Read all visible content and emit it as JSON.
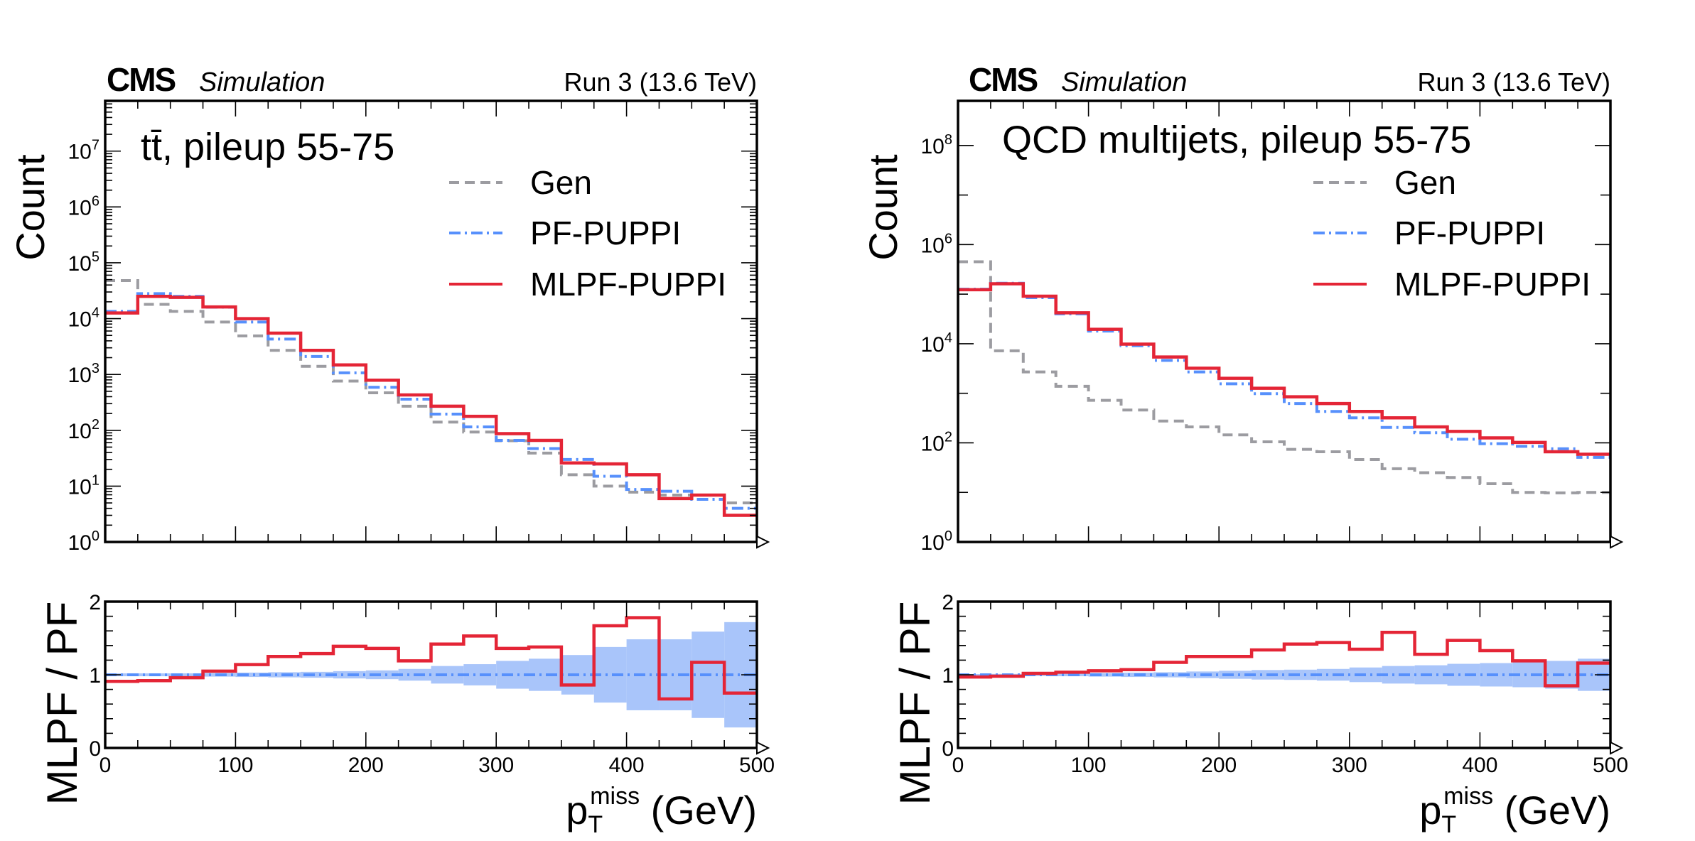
{
  "colors": {
    "gen": "#9c9ca1",
    "pf": "#5790fc",
    "mlpf": "#e42536",
    "band": "#a9c5fa"
  },
  "chart_data": [
    {
      "type": "line",
      "panel": "left",
      "experiment_label": "CMS",
      "experiment_sublabel": "Simulation",
      "run_label": "Run 3 (13.6 TeV)",
      "process_label": "tt̄, pileup 55-75",
      "xlabel": "p_T^miss (GeV)",
      "xlabel_main": "p",
      "xlabel_sub": "T",
      "xlabel_sup": "miss",
      "xlabel_unit": " (GeV)",
      "ylabel": "Count",
      "ratio_ylabel": "MLPF / PF",
      "yscale": "log",
      "ylim_log10": [
        0,
        7.9
      ],
      "yticks_log10": [
        0,
        1,
        2,
        3,
        4,
        5,
        6,
        7
      ],
      "xlim": [
        0,
        500
      ],
      "xticks": [
        0,
        100,
        200,
        300,
        400,
        500
      ],
      "ratio_ylim": [
        0,
        2
      ],
      "ratio_yticks": [
        0,
        1,
        2
      ],
      "legend": [
        "Gen",
        "PF-PUPPI",
        "MLPF-PUPPI"
      ],
      "legend_position": "upper-right",
      "bin_edges": [
        0,
        25,
        50,
        75,
        100,
        125,
        150,
        175,
        200,
        225,
        250,
        275,
        300,
        325,
        350,
        375,
        400,
        425,
        450,
        475,
        500
      ],
      "series": [
        {
          "name": "Gen",
          "style": "dashed",
          "values": [
            48000,
            18000,
            13500,
            8700,
            4900,
            2700,
            1400,
            760,
            470,
            270,
            140,
            93,
            65,
            39,
            16,
            10,
            7.8,
            6.9,
            6.9,
            5.0
          ]
        },
        {
          "name": "PF-PUPPI",
          "style": "dashdot",
          "values": [
            13500,
            28000,
            25000,
            16000,
            8700,
            4300,
            2100,
            1070,
            590,
            360,
            195,
            115,
            66,
            47,
            30,
            15,
            8.7,
            8.1,
            5.8,
            4.0
          ]
        },
        {
          "name": "MLPF-PUPPI",
          "style": "solid",
          "values": [
            12600,
            25000,
            24000,
            16200,
            10000,
            5500,
            2700,
            1480,
            790,
            430,
            270,
            178,
            87,
            66,
            26,
            25,
            16,
            6.0,
            6.9,
            3.0
          ]
        }
      ],
      "ratio": {
        "name": "MLPF / PF",
        "values": [
          0.91,
          0.92,
          0.96,
          1.05,
          1.14,
          1.25,
          1.29,
          1.39,
          1.36,
          1.19,
          1.42,
          1.53,
          1.36,
          1.38,
          0.86,
          1.67,
          1.78,
          0.67,
          1.17,
          0.75
        ],
        "pf_band_halfwidth": [
          0.02,
          0.02,
          0.02,
          0.025,
          0.03,
          0.035,
          0.04,
          0.05,
          0.06,
          0.08,
          0.12,
          0.145,
          0.19,
          0.22,
          0.27,
          0.38,
          0.485,
          0.485,
          0.59,
          0.72
        ]
      }
    },
    {
      "type": "line",
      "panel": "right",
      "experiment_label": "CMS",
      "experiment_sublabel": "Simulation",
      "run_label": "Run 3 (13.6 TeV)",
      "process_label": "QCD multijets, pileup 55-75",
      "xlabel": "p_T^miss (GeV)",
      "xlabel_main": "p",
      "xlabel_sub": "T",
      "xlabel_sup": "miss",
      "xlabel_unit": " (GeV)",
      "ylabel": "Count",
      "ratio_ylabel": "MLPF / PF",
      "yscale": "log",
      "ylim_log10": [
        0,
        8.9
      ],
      "yticks_log10": [
        0,
        2,
        4,
        6,
        8
      ],
      "xlim": [
        0,
        500
      ],
      "xticks": [
        0,
        100,
        200,
        300,
        400,
        500
      ],
      "ratio_ylim": [
        0,
        2
      ],
      "ratio_yticks": [
        0,
        1,
        2
      ],
      "legend": [
        "Gen",
        "PF-PUPPI",
        "MLPF-PUPPI"
      ],
      "legend_position": "upper-right",
      "bin_edges": [
        0,
        25,
        50,
        75,
        100,
        125,
        150,
        175,
        200,
        225,
        250,
        275,
        300,
        325,
        350,
        375,
        400,
        425,
        450,
        475,
        500
      ],
      "series": [
        {
          "name": "Gen",
          "style": "dashed",
          "values": [
            450000,
            7200,
            2700,
            1380,
            720,
            460,
            275,
            210,
            145,
            105,
            74,
            66,
            46,
            30,
            25,
            20,
            15,
            10,
            9.8,
            10
          ]
        },
        {
          "name": "PF-PUPPI",
          "style": "dashdot",
          "values": [
            126000,
            166000,
            85000,
            40000,
            18000,
            9100,
            4600,
            2700,
            1550,
            980,
            620,
            430,
            320,
            205,
            160,
            118,
            96,
            85,
            76,
            51
          ]
        },
        {
          "name": "MLPF-PUPPI",
          "style": "solid",
          "values": [
            123000,
            162000,
            91000,
            42000,
            19500,
            9800,
            5400,
            3200,
            2000,
            1260,
            850,
            620,
            430,
            320,
            210,
            170,
            126,
            102,
            66,
            59
          ]
        }
      ],
      "ratio": {
        "name": "MLPF / PF",
        "values": [
          0.97,
          0.98,
          1.02,
          1.035,
          1.055,
          1.07,
          1.17,
          1.25,
          1.25,
          1.34,
          1.42,
          1.44,
          1.35,
          1.58,
          1.28,
          1.47,
          1.33,
          1.19,
          0.85,
          1.16
        ],
        "pf_band_halfwidth": [
          0.01,
          0.012,
          0.015,
          0.02,
          0.025,
          0.03,
          0.035,
          0.045,
          0.055,
          0.065,
          0.07,
          0.08,
          0.1,
          0.12,
          0.13,
          0.15,
          0.16,
          0.17,
          0.19,
          0.22
        ]
      }
    }
  ]
}
